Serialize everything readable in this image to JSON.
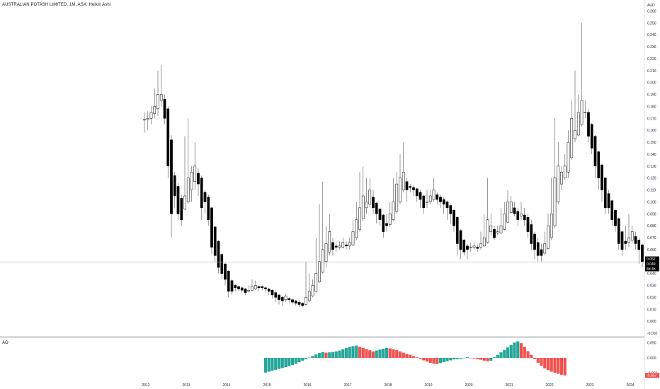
{
  "header": {
    "title": "AUSTRALIAN POTASH LIMITED, 1M, ASX, Heikin Ashi",
    "currency": "AUD"
  },
  "indicator": {
    "label": "AO"
  },
  "colors": {
    "bull_body": "#ffffff",
    "bear_body": "#000000",
    "wick": "#555555",
    "ao_up": "#26a69a",
    "ao_down": "#ef5350",
    "grid_line": "#b2b5be"
  },
  "price_badges": [
    {
      "text": "0.052",
      "bg": "#000000"
    },
    {
      "text": "0.049",
      "bg": "#000000"
    },
    {
      "text": "8d 4h",
      "bg": "#000000"
    }
  ],
  "ao_badge": {
    "text": "-0.057",
    "bg": "#ef5350"
  },
  "chart_data": {
    "type": "candlestick",
    "style": "Heikin Ashi",
    "interval": "1M",
    "ylim": [
      -0.01,
      0.26
    ],
    "ytick_labels": [
      "-0.010",
      "0.000",
      "0.010",
      "0.020",
      "0.030",
      "0.040",
      "0.050",
      "0.060",
      "0.070",
      "0.080",
      "0.090",
      "0.100",
      "0.110",
      "0.120",
      "0.130",
      "0.140",
      "0.150",
      "0.160",
      "0.170",
      "0.180",
      "0.190",
      "0.200",
      "0.210",
      "0.220",
      "0.230",
      "0.240",
      "0.250",
      "0.260"
    ],
    "xtick_labels": [
      "2012",
      "2013",
      "2014",
      "2015",
      "2016",
      "2017",
      "2018",
      "2019",
      "2020",
      "2021",
      "2022",
      "2023",
      "2024"
    ],
    "start": "2012-01",
    "candles": [
      [
        0.169,
        0.169,
        0.175,
        0.158
      ],
      [
        0.169,
        0.17,
        0.176,
        0.16
      ],
      [
        0.17,
        0.175,
        0.18,
        0.165
      ],
      [
        0.174,
        0.18,
        0.195,
        0.17
      ],
      [
        0.178,
        0.19,
        0.21,
        0.172
      ],
      [
        0.185,
        0.19,
        0.215,
        0.18
      ],
      [
        0.186,
        0.17,
        0.19,
        0.165
      ],
      [
        0.178,
        0.13,
        0.18,
        0.12
      ],
      [
        0.152,
        0.09,
        0.156,
        0.07
      ],
      [
        0.122,
        0.105,
        0.125,
        0.095
      ],
      [
        0.113,
        0.09,
        0.116,
        0.085
      ],
      [
        0.103,
        0.085,
        0.106,
        0.08
      ],
      [
        0.094,
        0.105,
        0.155,
        0.093
      ],
      [
        0.1,
        0.12,
        0.17,
        0.098
      ],
      [
        0.11,
        0.125,
        0.13,
        0.1
      ],
      [
        0.117,
        0.13,
        0.15,
        0.11
      ],
      [
        0.124,
        0.115,
        0.128,
        0.105
      ],
      [
        0.12,
        0.095,
        0.122,
        0.085
      ],
      [
        0.108,
        0.1,
        0.11,
        0.09
      ],
      [
        0.104,
        0.085,
        0.106,
        0.08
      ],
      [
        0.095,
        0.062,
        0.096,
        0.056
      ],
      [
        0.079,
        0.055,
        0.08,
        0.05
      ],
      [
        0.067,
        0.045,
        0.068,
        0.04
      ],
      [
        0.056,
        0.04,
        0.057,
        0.035
      ],
      [
        0.048,
        0.035,
        0.049,
        0.03
      ],
      [
        0.042,
        0.025,
        0.043,
        0.02
      ],
      [
        0.034,
        0.025,
        0.035,
        0.022
      ],
      [
        0.03,
        0.028,
        0.031,
        0.025
      ],
      [
        0.029,
        0.027,
        0.03,
        0.025
      ],
      [
        0.028,
        0.026,
        0.029,
        0.024
      ],
      [
        0.027,
        0.024,
        0.028,
        0.022
      ],
      [
        0.025,
        0.026,
        0.03,
        0.024
      ],
      [
        0.026,
        0.029,
        0.035,
        0.025
      ],
      [
        0.027,
        0.03,
        0.034,
        0.026
      ],
      [
        0.029,
        0.028,
        0.03,
        0.025
      ],
      [
        0.029,
        0.028,
        0.03,
        0.026
      ],
      [
        0.028,
        0.027,
        0.029,
        0.024
      ],
      [
        0.027,
        0.025,
        0.028,
        0.022
      ],
      [
        0.026,
        0.022,
        0.027,
        0.019
      ],
      [
        0.024,
        0.02,
        0.025,
        0.016
      ],
      [
        0.022,
        0.018,
        0.023,
        0.014
      ],
      [
        0.02,
        0.017,
        0.021,
        0.013
      ],
      [
        0.018,
        0.021,
        0.023,
        0.016
      ],
      [
        0.019,
        0.018,
        0.02,
        0.015
      ],
      [
        0.018,
        0.016,
        0.019,
        0.014
      ],
      [
        0.017,
        0.015,
        0.018,
        0.013
      ],
      [
        0.016,
        0.014,
        0.017,
        0.012
      ],
      [
        0.015,
        0.013,
        0.016,
        0.012
      ],
      [
        0.014,
        0.02,
        0.05,
        0.013
      ],
      [
        0.017,
        0.025,
        0.04,
        0.016
      ],
      [
        0.021,
        0.03,
        0.035,
        0.02
      ],
      [
        0.025,
        0.04,
        0.07,
        0.024
      ],
      [
        0.033,
        0.05,
        0.098,
        0.032
      ],
      [
        0.041,
        0.06,
        0.117,
        0.04
      ],
      [
        0.05,
        0.065,
        0.08,
        0.045
      ],
      [
        0.058,
        0.075,
        0.09,
        0.055
      ],
      [
        0.066,
        0.06,
        0.07,
        0.055
      ],
      [
        0.063,
        0.062,
        0.066,
        0.058
      ],
      [
        0.062,
        0.063,
        0.067,
        0.06
      ],
      [
        0.062,
        0.066,
        0.07,
        0.061
      ],
      [
        0.064,
        0.063,
        0.067,
        0.06
      ],
      [
        0.063,
        0.066,
        0.07,
        0.06
      ],
      [
        0.064,
        0.075,
        0.085,
        0.063
      ],
      [
        0.07,
        0.085,
        0.1,
        0.068
      ],
      [
        0.077,
        0.095,
        0.125,
        0.075
      ],
      [
        0.086,
        0.105,
        0.13,
        0.084
      ],
      [
        0.095,
        0.1,
        0.12,
        0.09
      ],
      [
        0.098,
        0.11,
        0.12,
        0.095
      ],
      [
        0.104,
        0.095,
        0.11,
        0.09
      ],
      [
        0.099,
        0.09,
        0.1,
        0.082
      ],
      [
        0.094,
        0.085,
        0.095,
        0.08
      ],
      [
        0.089,
        0.075,
        0.09,
        0.07
      ],
      [
        0.082,
        0.08,
        0.09,
        0.075
      ],
      [
        0.081,
        0.09,
        0.1,
        0.079
      ],
      [
        0.085,
        0.1,
        0.12,
        0.084
      ],
      [
        0.092,
        0.115,
        0.125,
        0.09
      ],
      [
        0.1,
        0.12,
        0.14,
        0.098
      ],
      [
        0.11,
        0.125,
        0.15,
        0.108
      ],
      [
        0.117,
        0.11,
        0.12,
        0.1
      ],
      [
        0.113,
        0.112,
        0.115,
        0.108
      ],
      [
        0.112,
        0.11,
        0.114,
        0.105
      ],
      [
        0.111,
        0.105,
        0.112,
        0.1
      ],
      [
        0.108,
        0.102,
        0.11,
        0.095
      ],
      [
        0.105,
        0.095,
        0.106,
        0.09
      ],
      [
        0.1,
        0.1,
        0.11,
        0.095
      ],
      [
        0.1,
        0.105,
        0.11,
        0.098
      ],
      [
        0.102,
        0.11,
        0.12,
        0.1
      ],
      [
        0.106,
        0.102,
        0.108,
        0.098
      ],
      [
        0.104,
        0.1,
        0.106,
        0.095
      ],
      [
        0.102,
        0.098,
        0.104,
        0.09
      ],
      [
        0.1,
        0.095,
        0.101,
        0.085
      ],
      [
        0.097,
        0.09,
        0.098,
        0.082
      ],
      [
        0.093,
        0.08,
        0.094,
        0.075
      ],
      [
        0.087,
        0.065,
        0.088,
        0.055
      ],
      [
        0.076,
        0.06,
        0.077,
        0.052
      ],
      [
        0.068,
        0.058,
        0.069,
        0.055
      ],
      [
        0.063,
        0.06,
        0.065,
        0.052
      ],
      [
        0.062,
        0.062,
        0.066,
        0.058
      ],
      [
        0.062,
        0.063,
        0.066,
        0.06
      ],
      [
        0.062,
        0.061,
        0.064,
        0.058
      ],
      [
        0.062,
        0.065,
        0.075,
        0.06
      ],
      [
        0.063,
        0.07,
        0.09,
        0.062
      ],
      [
        0.066,
        0.085,
        0.12,
        0.065
      ],
      [
        0.075,
        0.08,
        0.09,
        0.072
      ],
      [
        0.077,
        0.07,
        0.08,
        0.068
      ],
      [
        0.074,
        0.075,
        0.08,
        0.072
      ],
      [
        0.074,
        0.08,
        0.095,
        0.073
      ],
      [
        0.077,
        0.09,
        0.1,
        0.076
      ],
      [
        0.083,
        0.1,
        0.11,
        0.082
      ],
      [
        0.091,
        0.1,
        0.105,
        0.09
      ],
      [
        0.095,
        0.09,
        0.1,
        0.088
      ],
      [
        0.092,
        0.085,
        0.095,
        0.08
      ],
      [
        0.088,
        0.09,
        0.1,
        0.085
      ],
      [
        0.089,
        0.085,
        0.095,
        0.08
      ],
      [
        0.087,
        0.075,
        0.09,
        0.07
      ],
      [
        0.081,
        0.065,
        0.085,
        0.06
      ],
      [
        0.073,
        0.06,
        0.075,
        0.052
      ],
      [
        0.066,
        0.055,
        0.07,
        0.05
      ],
      [
        0.06,
        0.055,
        0.065,
        0.05
      ],
      [
        0.057,
        0.065,
        0.075,
        0.055
      ],
      [
        0.061,
        0.08,
        0.09,
        0.06
      ],
      [
        0.07,
        0.09,
        0.12,
        0.068
      ],
      [
        0.08,
        0.12,
        0.17,
        0.078
      ],
      [
        0.1,
        0.13,
        0.15,
        0.098
      ],
      [
        0.115,
        0.125,
        0.13,
        0.11
      ],
      [
        0.12,
        0.13,
        0.14,
        0.118
      ],
      [
        0.125,
        0.15,
        0.16,
        0.12
      ],
      [
        0.137,
        0.17,
        0.185,
        0.135
      ],
      [
        0.153,
        0.16,
        0.21,
        0.15
      ],
      [
        0.156,
        0.175,
        0.19,
        0.155
      ],
      [
        0.165,
        0.185,
        0.25,
        0.163
      ],
      [
        0.175,
        0.175,
        0.185,
        0.17
      ],
      [
        0.175,
        0.155,
        0.178,
        0.15
      ],
      [
        0.165,
        0.145,
        0.166,
        0.14
      ],
      [
        0.155,
        0.13,
        0.156,
        0.12
      ],
      [
        0.142,
        0.12,
        0.143,
        0.11
      ],
      [
        0.131,
        0.11,
        0.132,
        0.1
      ],
      [
        0.12,
        0.095,
        0.121,
        0.09
      ],
      [
        0.107,
        0.095,
        0.11,
        0.09
      ],
      [
        0.101,
        0.085,
        0.102,
        0.08
      ],
      [
        0.093,
        0.08,
        0.094,
        0.075
      ],
      [
        0.086,
        0.065,
        0.087,
        0.06
      ],
      [
        0.075,
        0.06,
        0.076,
        0.055
      ],
      [
        0.067,
        0.065,
        0.08,
        0.06
      ],
      [
        0.066,
        0.07,
        0.09,
        0.062
      ],
      [
        0.068,
        0.075,
        0.08,
        0.065
      ],
      [
        0.071,
        0.065,
        0.075,
        0.06
      ],
      [
        0.068,
        0.06,
        0.07,
        0.048
      ],
      [
        0.064,
        0.05,
        0.065,
        0.045
      ]
    ],
    "ao": {
      "ylim": [
        -0.06,
        0.06
      ],
      "ytick_labels": [
        "0.050",
        "0.000",
        "-0.050"
      ],
      "start_index": 36,
      "values": [
        -0.048,
        -0.045,
        -0.042,
        -0.039,
        -0.036,
        -0.033,
        -0.03,
        -0.027,
        -0.023,
        -0.019,
        -0.014,
        -0.009,
        -0.004,
        0.001,
        0.006,
        0.011,
        0.016,
        0.019,
        0.017,
        0.018,
        0.019,
        0.021,
        0.024,
        0.028,
        0.032,
        0.036,
        0.038,
        0.04,
        0.036,
        0.033,
        0.029,
        0.025,
        0.021,
        0.024,
        0.027,
        0.03,
        0.033,
        0.031,
        0.028,
        0.025,
        0.021,
        0.017,
        0.013,
        0.01,
        0.006,
        0.002,
        -0.003,
        -0.008,
        -0.012,
        -0.016,
        -0.019,
        -0.02,
        -0.017,
        -0.014,
        -0.011,
        -0.008,
        -0.005,
        -0.004,
        -0.003,
        -0.001,
        0.002,
        0.0,
        -0.002,
        -0.004,
        -0.006,
        -0.009,
        -0.011,
        -0.009,
        0.002,
        0.01,
        0.018,
        0.026,
        0.034,
        0.042,
        0.05,
        0.054,
        0.048,
        0.036,
        0.022,
        0.01,
        -0.004,
        -0.016,
        -0.026,
        -0.034,
        -0.04,
        -0.045,
        -0.049,
        -0.052,
        -0.055,
        -0.057
      ]
    }
  }
}
